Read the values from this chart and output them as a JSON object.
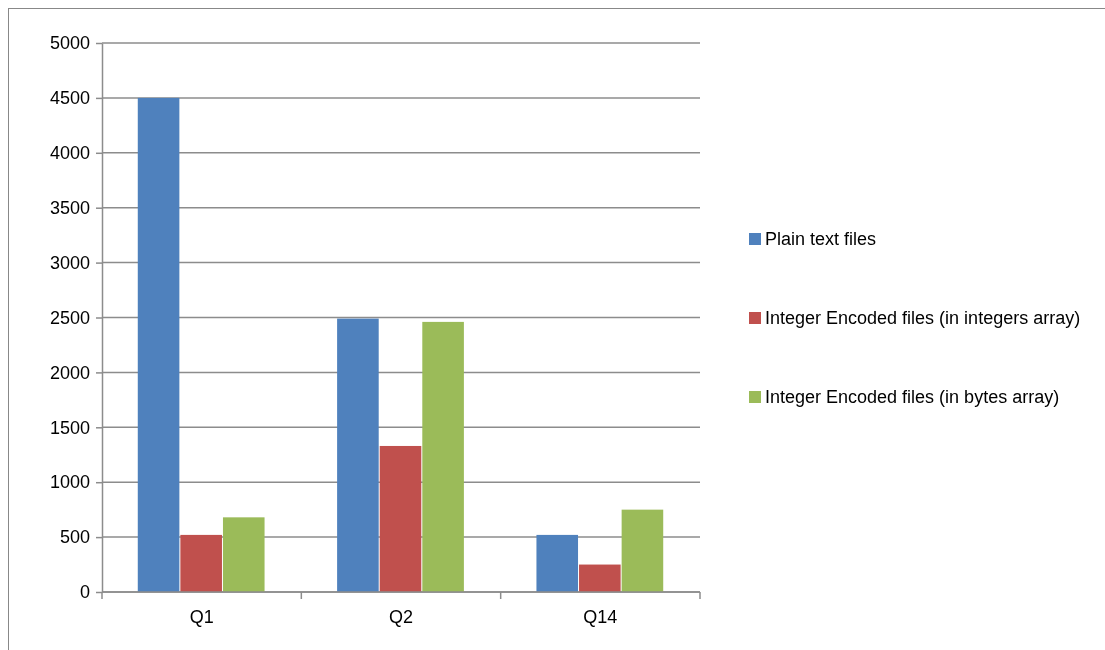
{
  "chart_data": {
    "type": "bar",
    "categories": [
      "Q1",
      "Q2",
      "Q14"
    ],
    "series": [
      {
        "name": "Plain text files",
        "color": "#4f81bd",
        "values": [
          4500,
          2490,
          520
        ]
      },
      {
        "name": "Integer Encoded files (in integers array)",
        "color": "#c0504d",
        "values": [
          520,
          1330,
          250
        ]
      },
      {
        "name": "Integer Encoded files (in bytes array)",
        "color": "#9bbb59",
        "values": [
          680,
          2460,
          750
        ]
      }
    ],
    "ylim": [
      0,
      5000
    ],
    "yticks": [
      0,
      500,
      1000,
      1500,
      2000,
      2500,
      3000,
      3500,
      4000,
      4500,
      5000
    ],
    "grid": "y",
    "legend": "right"
  }
}
